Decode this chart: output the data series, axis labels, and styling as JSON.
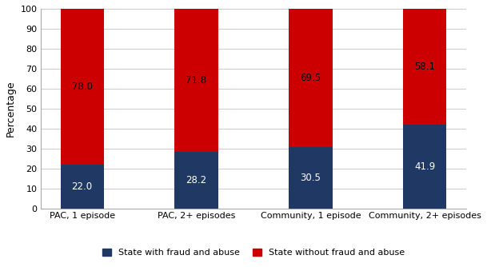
{
  "categories": [
    "PAC, 1 episode",
    "PAC, 2+ episodes",
    "Community, 1 episode",
    "Community, 2+ episodes"
  ],
  "fraud_values": [
    22.0,
    28.2,
    30.5,
    41.9
  ],
  "no_fraud_values": [
    78.0,
    71.8,
    69.5,
    58.1
  ],
  "fraud_color": "#1F3864",
  "no_fraud_color": "#CC0000",
  "fraud_label": "State with fraud and abuse",
  "no_fraud_label": "State without fraud and abuse",
  "ylabel": "Percentage",
  "ylim": [
    0,
    100
  ],
  "yticks": [
    0,
    10,
    20,
    30,
    40,
    50,
    60,
    70,
    80,
    90,
    100
  ],
  "bar_width": 0.38,
  "label_fontsize": 8.5,
  "tick_fontsize": 8,
  "legend_fontsize": 8,
  "ylabel_fontsize": 9,
  "background_color": "#ffffff",
  "grid_color": "#cccccc",
  "fraud_text_color": "#ffffff",
  "no_fraud_text_color": "#000000"
}
